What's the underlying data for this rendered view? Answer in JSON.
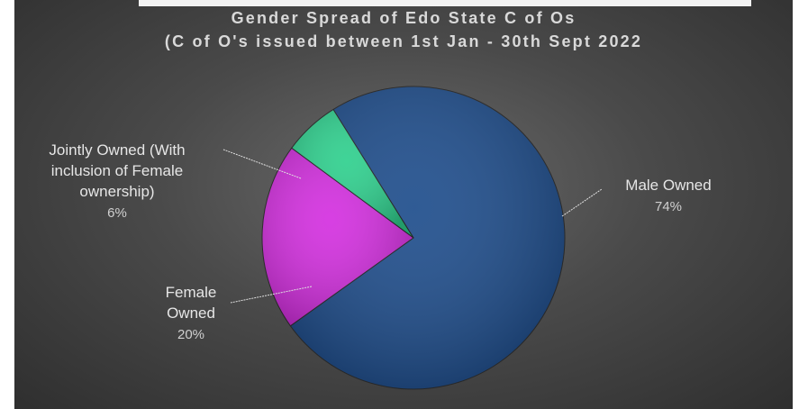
{
  "chart_data": {
    "type": "pie",
    "title_line1": "Gender Spread of Edo State C of Os",
    "title_line2": "(C of O's issued between 1st Jan -  30th Sept 2022",
    "slices": [
      {
        "label_lines": [
          "Male Owned"
        ],
        "value": 74,
        "value_label": "74%",
        "color": "#1e4d8c"
      },
      {
        "label_lines": [
          "Female",
          "Owned"
        ],
        "value": 20,
        "value_label": "20%",
        "color": "#d42fe0"
      },
      {
        "label_lines": [
          "Jointly Owned (With",
          "inclusion of Female",
          "ownership)"
        ],
        "value": 6,
        "value_label": "6%",
        "color": "#2fd08e"
      }
    ],
    "start_angle_deg": -122,
    "direction": "clockwise",
    "legend": "none"
  }
}
